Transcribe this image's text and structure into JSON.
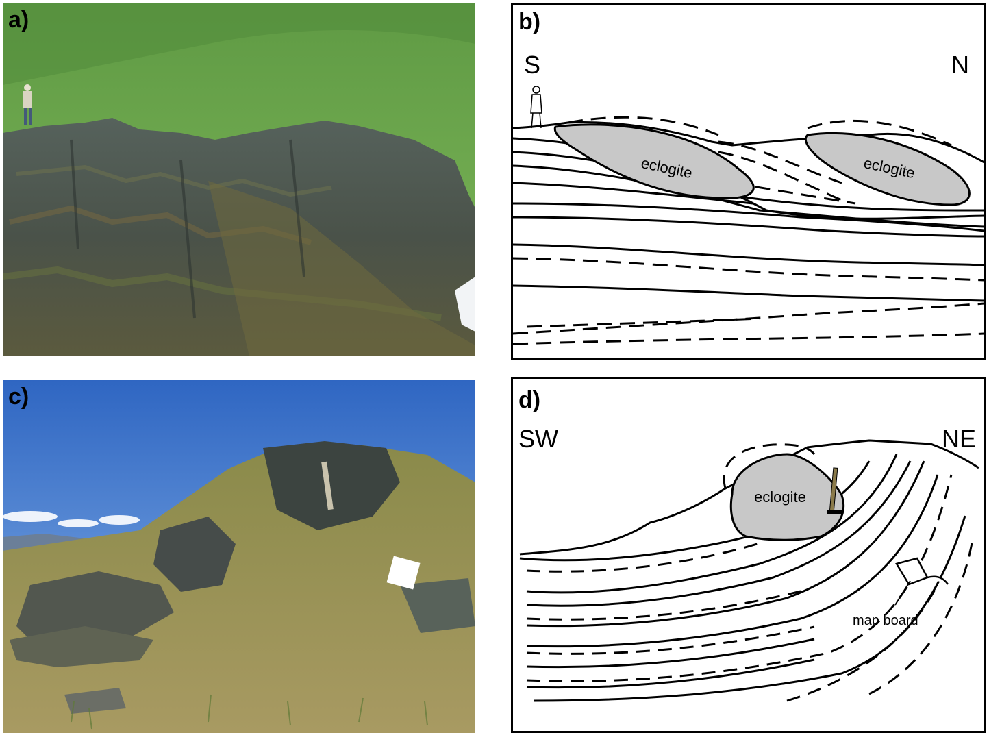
{
  "panels": {
    "a": {
      "label": "a)"
    },
    "b": {
      "label": "b)",
      "left_dir": "S",
      "right_dir": "N",
      "eclogite_1": "eclogite",
      "eclogite_2": "eclogite"
    },
    "c": {
      "label": "c)"
    },
    "d": {
      "label": "d)",
      "left_dir": "SW",
      "right_dir": "NE",
      "eclogite": "eclogite",
      "map_board": "map board"
    }
  },
  "colors": {
    "eclogite_fill": "#c8c8c8",
    "grass": "#6ea84a",
    "rock": "#4a5550",
    "sky": "#3f78c8"
  }
}
